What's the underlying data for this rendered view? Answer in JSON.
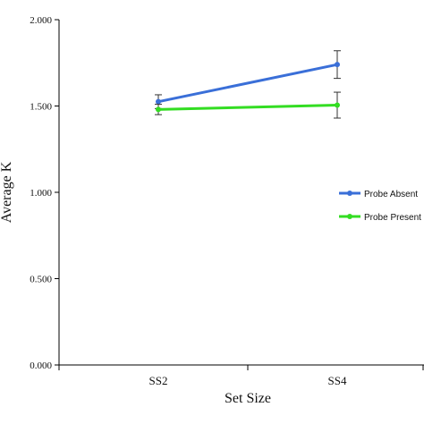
{
  "chart_data": {
    "type": "line",
    "categories": [
      "SS2",
      "SS4"
    ],
    "xlabel": "Set Size",
    "ylabel": "Average K",
    "ylim": [
      0.0,
      2.0
    ],
    "yticks": [
      "0.000",
      "0.500",
      "1.000",
      "1.500",
      "2.000"
    ],
    "legend_position": "right",
    "grid": false,
    "series": [
      {
        "name": "Probe Absent",
        "color": "#3a6fd8",
        "values": [
          1.525,
          1.74
        ],
        "errors": [
          0.04,
          0.08
        ]
      },
      {
        "name": "Probe Present",
        "color": "#33dd22",
        "values": [
          1.48,
          1.505
        ],
        "errors": [
          0.03,
          0.075
        ]
      }
    ]
  }
}
